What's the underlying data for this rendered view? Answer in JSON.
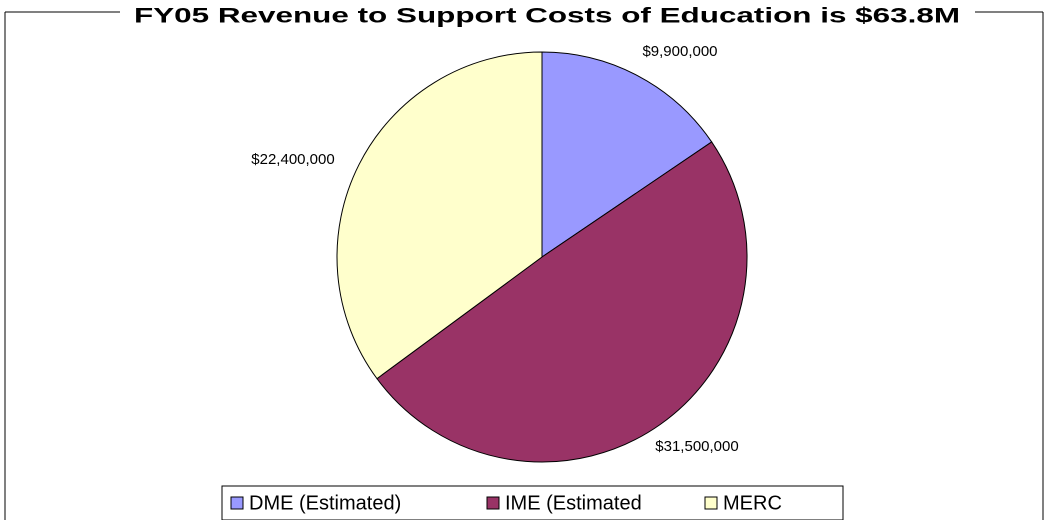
{
  "chart_data": {
    "type": "pie",
    "title": "FY05 Revenue to Support Costs of Education is $63.8M",
    "categories": [
      "DME (Estimated)",
      "IME (Estimated",
      "MERC"
    ],
    "values": [
      9900000,
      31500000,
      22400000
    ],
    "value_labels": [
      "$9,900,000",
      "$31,500,000",
      "$22,400,000"
    ],
    "colors": [
      "#9999ff",
      "#993366",
      "#ffffcc"
    ],
    "legend": "bottom"
  }
}
